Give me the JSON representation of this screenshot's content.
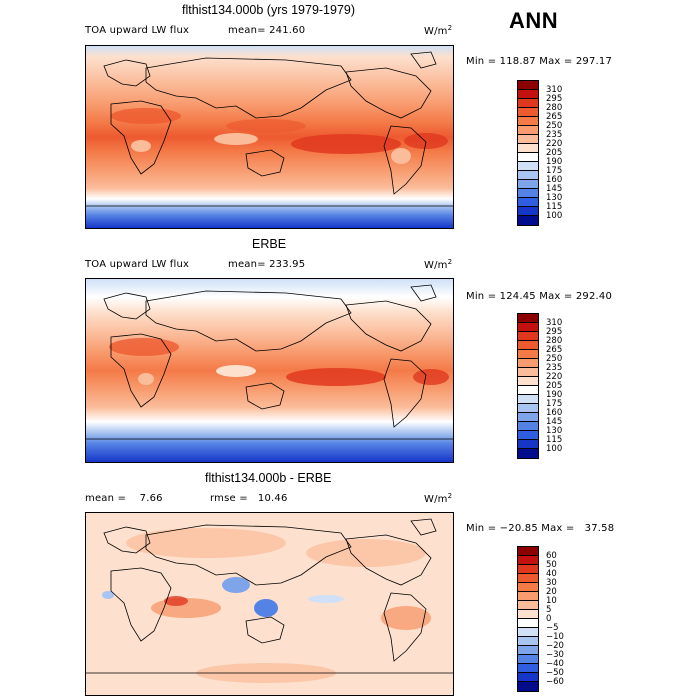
{
  "season": "ANN",
  "panels": [
    {
      "title": "flthist134.000b (yrs 1979-1979)",
      "left_label": "TOA upward LW flux",
      "mid_label": "mean= 241.60",
      "units_text": "W/m",
      "units_exp": "2",
      "minmax": "Min = 118.87 Max = 297.17",
      "colorbar_labels": [
        "310",
        "295",
        "280",
        "265",
        "250",
        "235",
        "220",
        "205",
        "190",
        "175",
        "160",
        "145",
        "130",
        "115",
        "100"
      ],
      "colorbar_colors": [
        "#8b0000",
        "#c2110f",
        "#e0381f",
        "#ed5a30",
        "#f47a48",
        "#f89b6e",
        "#fbbc9a",
        "#fde0cd",
        "#ffffff",
        "#cfe0f7",
        "#a8c4f0",
        "#7ea4ea",
        "#5583e5",
        "#2f5ee0",
        "#1636c8",
        "#000c8c"
      ]
    },
    {
      "title": "ERBE",
      "left_label": "TOA upward LW flux",
      "mid_label": "mean= 233.95",
      "units_text": "W/m",
      "units_exp": "2",
      "minmax": "Min = 124.45 Max = 292.40",
      "colorbar_labels": [
        "310",
        "295",
        "280",
        "265",
        "250",
        "235",
        "220",
        "205",
        "190",
        "175",
        "160",
        "145",
        "130",
        "115",
        "100"
      ],
      "colorbar_colors": [
        "#8b0000",
        "#c2110f",
        "#e0381f",
        "#ed5a30",
        "#f47a48",
        "#f89b6e",
        "#fbbc9a",
        "#fde0cd",
        "#ffffff",
        "#cfe0f7",
        "#a8c4f0",
        "#7ea4ea",
        "#5583e5",
        "#2f5ee0",
        "#1636c8",
        "#000c8c"
      ]
    },
    {
      "title": "flthist134.000b - ERBE",
      "left_label": "mean =    7.66",
      "mid_label": "rmse =   10.46",
      "units_text": "W/m",
      "units_exp": "2",
      "minmax": "Min = −20.85 Max =   37.58",
      "colorbar_labels": [
        "60",
        "50",
        "40",
        "30",
        "20",
        "10",
        "5",
        "0",
        "−5",
        "−10",
        "−20",
        "−30",
        "−40",
        "−50",
        "−60"
      ],
      "colorbar_colors": [
        "#8b0000",
        "#c2110f",
        "#e0381f",
        "#ed5a30",
        "#f47a48",
        "#f89b6e",
        "#fbbc9a",
        "#fde0cd",
        "#ffffff",
        "#cfe0f7",
        "#a8c4f0",
        "#7ea4ea",
        "#5583e5",
        "#2f5ee0",
        "#1636c8",
        "#000c8c"
      ]
    }
  ]
}
